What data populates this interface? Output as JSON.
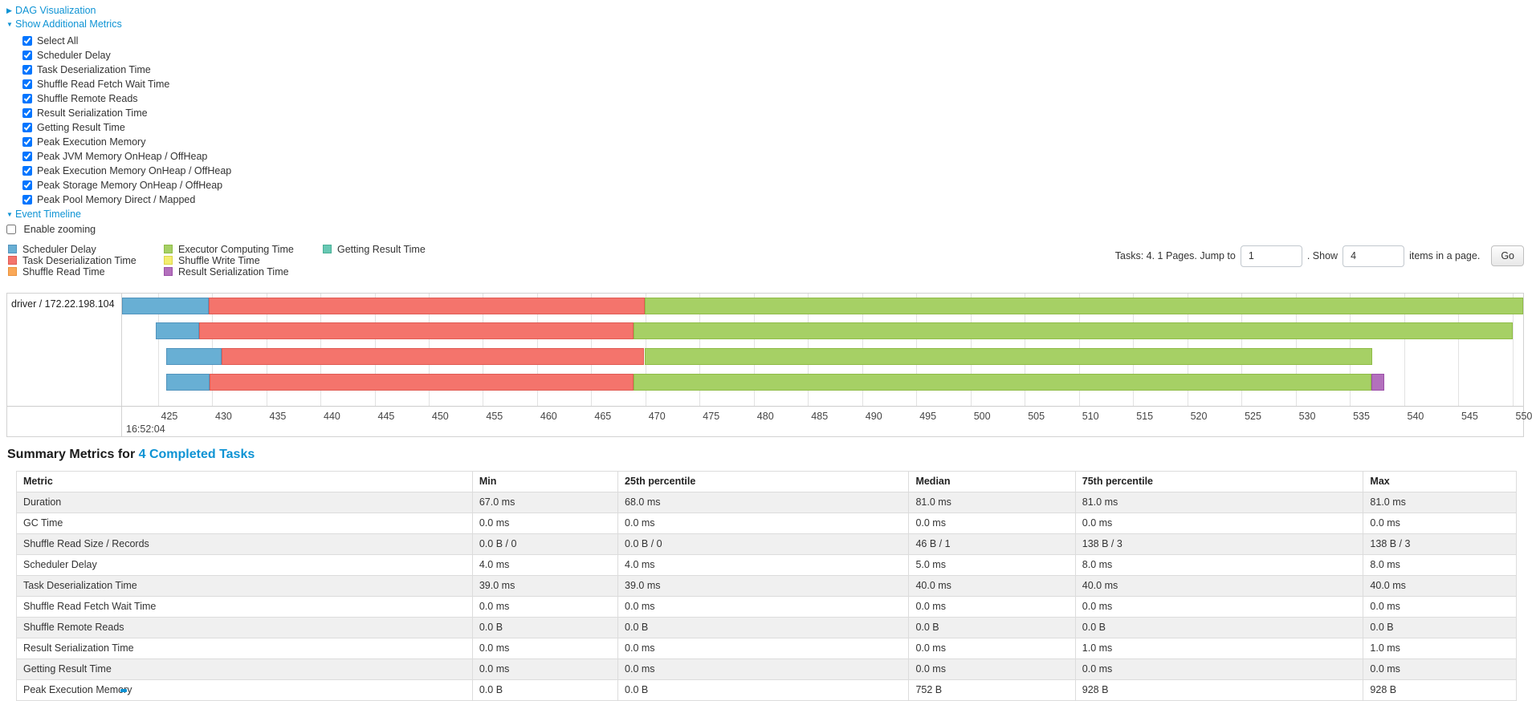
{
  "colors": {
    "link_blue": "#0e93d4",
    "palette": {
      "scheduler_delay": {
        "fill": "#68AFD4",
        "border": "#5294BD"
      },
      "task_deserialization": {
        "fill": "#F4746C",
        "border": "#E05B54"
      },
      "shuffle_read": {
        "fill": "#FAA857",
        "border": "#E9923E"
      },
      "executor_computing": {
        "fill": "#A6D065",
        "border": "#8FBC47"
      },
      "shuffle_write": {
        "fill": "#F3EE70",
        "border": "#DCD54A"
      },
      "result_serialization": {
        "fill": "#B370BD",
        "border": "#9C50A8"
      },
      "getting_result": {
        "fill": "#68C8B4",
        "border": "#49B096"
      }
    }
  },
  "toggles": {
    "dag": {
      "label": "DAG Visualization",
      "state": "collapsed",
      "arrow": "▶"
    },
    "metrics": {
      "label": "Show Additional Metrics",
      "state": "expanded",
      "arrow": "▼"
    },
    "timeline": {
      "label": "Event Timeline",
      "state": "expanded",
      "arrow": "▼"
    }
  },
  "metric_checkboxes": [
    {
      "label": "Select All",
      "checked": true
    },
    {
      "label": "Scheduler Delay",
      "checked": true
    },
    {
      "label": "Task Deserialization Time",
      "checked": true
    },
    {
      "label": "Shuffle Read Fetch Wait Time",
      "checked": true
    },
    {
      "label": "Shuffle Remote Reads",
      "checked": true
    },
    {
      "label": "Result Serialization Time",
      "checked": true
    },
    {
      "label": "Getting Result Time",
      "checked": true
    },
    {
      "label": "Peak Execution Memory",
      "checked": true
    },
    {
      "label": "Peak JVM Memory OnHeap / OffHeap",
      "checked": true
    },
    {
      "label": "Peak Execution Memory OnHeap / OffHeap",
      "checked": true
    },
    {
      "label": "Peak Storage Memory OnHeap / OffHeap",
      "checked": true
    },
    {
      "label": "Peak Pool Memory Direct / Mapped",
      "checked": true
    }
  ],
  "enable_zooming": {
    "label": "Enable zooming",
    "checked": false
  },
  "legend": {
    "columns": [
      [
        {
          "key": "scheduler_delay",
          "label": "Scheduler Delay"
        },
        {
          "key": "task_deserialization",
          "label": "Task Deserialization Time"
        },
        {
          "key": "shuffle_read",
          "label": "Shuffle Read Time"
        }
      ],
      [
        {
          "key": "executor_computing",
          "label": "Executor Computing Time"
        },
        {
          "key": "shuffle_write",
          "label": "Shuffle Write Time"
        },
        {
          "key": "result_serialization",
          "label": "Result Serialization Time"
        }
      ],
      [
        {
          "key": "getting_result",
          "label": "Getting Result Time"
        }
      ]
    ]
  },
  "pagination": {
    "tasks_text": "Tasks: 4. 1 Pages. Jump to",
    "jump_value": "1",
    "show_text": ". Show",
    "show_value": "4",
    "items_text": "items in a page.",
    "go_label": "Go"
  },
  "timeline": {
    "group_label": "driver / 172.22.198.104",
    "axis": {
      "domain_start": 421.7,
      "domain_end": 551,
      "tick_start": 425,
      "tick_step": 5,
      "tick_end": 550,
      "major_label": "16:52:04"
    },
    "tasks": [
      {
        "segments": [
          {
            "type": "scheduler_delay",
            "start": 421.7,
            "end": 429.7
          },
          {
            "type": "task_deserialization",
            "start": 429.7,
            "end": 469.9
          },
          {
            "type": "executor_computing",
            "start": 469.9,
            "end": 551
          }
        ]
      },
      {
        "segments": [
          {
            "type": "scheduler_delay",
            "start": 424.8,
            "end": 428.8
          },
          {
            "type": "task_deserialization",
            "start": 428.8,
            "end": 468.9
          },
          {
            "type": "executor_computing",
            "start": 468.9,
            "end": 550
          }
        ]
      },
      {
        "segments": [
          {
            "type": "scheduler_delay",
            "start": 425.8,
            "end": 430.9
          },
          {
            "type": "task_deserialization",
            "start": 430.9,
            "end": 469.9
          },
          {
            "type": "executor_computing",
            "start": 469.9,
            "end": 537.1
          }
        ]
      },
      {
        "segments": [
          {
            "type": "scheduler_delay",
            "start": 425.8,
            "end": 429.8
          },
          {
            "type": "task_deserialization",
            "start": 429.8,
            "end": 468.9
          },
          {
            "type": "executor_computing",
            "start": 468.9,
            "end": 537.0
          },
          {
            "type": "result_serialization",
            "start": 537.0,
            "end": 538.2
          }
        ]
      }
    ]
  },
  "summary": {
    "title_prefix": "Summary Metrics for ",
    "title_link": "4 Completed Tasks",
    "table": {
      "headers": [
        "Metric",
        "Min",
        "25th percentile",
        "Median",
        "75th percentile",
        "Max"
      ],
      "col_widths_pct": [
        30.4,
        9.7,
        19.4,
        11.1,
        19.2,
        10.2
      ],
      "rows": [
        [
          "Duration",
          "67.0 ms",
          "68.0 ms",
          "81.0 ms",
          "81.0 ms",
          "81.0 ms"
        ],
        [
          "GC Time",
          "0.0 ms",
          "0.0 ms",
          "0.0 ms",
          "0.0 ms",
          "0.0 ms"
        ],
        [
          "Shuffle Read Size / Records",
          "0.0 B / 0",
          "0.0 B / 0",
          "46 B / 1",
          "138 B / 3",
          "138 B / 3"
        ],
        [
          "Scheduler Delay",
          "4.0 ms",
          "4.0 ms",
          "5.0 ms",
          "8.0 ms",
          "8.0 ms"
        ],
        [
          "Task Deserialization Time",
          "39.0 ms",
          "39.0 ms",
          "40.0 ms",
          "40.0 ms",
          "40.0 ms"
        ],
        [
          "Shuffle Read Fetch Wait Time",
          "0.0 ms",
          "0.0 ms",
          "0.0 ms",
          "0.0 ms",
          "0.0 ms"
        ],
        [
          "Shuffle Remote Reads",
          "0.0 B",
          "0.0 B",
          "0.0 B",
          "0.0 B",
          "0.0 B"
        ],
        [
          "Result Serialization Time",
          "0.0 ms",
          "0.0 ms",
          "0.0 ms",
          "1.0 ms",
          "1.0 ms"
        ],
        [
          "Getting Result Time",
          "0.0 ms",
          "0.0 ms",
          "0.0 ms",
          "0.0 ms",
          "0.0 ms"
        ],
        [
          "Peak Execution Memory",
          "0.0 B",
          "0.0 B",
          "752 B",
          "928 B",
          "928 B"
        ]
      ]
    }
  }
}
